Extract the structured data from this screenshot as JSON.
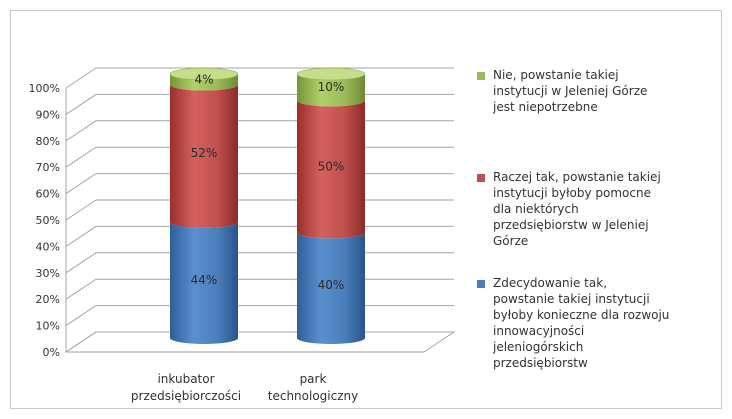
{
  "chart_data": {
    "type": "bar",
    "stacked": true,
    "three_d": true,
    "categories": [
      "inkubator przedsiębiorczości",
      "park technologiczny"
    ],
    "series": [
      {
        "name": "Zdecydowanie tak, powstanie takiej instytucji byłoby konieczne dla rozwoju innowacyjności jeleniogórskich przedsiębiorstw",
        "color": "#4a7ebb",
        "values": [
          44,
          40
        ],
        "labels": [
          "44%",
          "40%"
        ]
      },
      {
        "name": "Raczej tak, powstanie takiej instytucji byłoby pomocne dla niektórych przedsiębiorstw w Jeleniej Górze",
        "color": "#c0504d",
        "values": [
          52,
          50
        ],
        "labels": [
          "52%",
          "50%"
        ]
      },
      {
        "name": "Nie, powstanie takiej instytucji w Jeleniej Górze jest niepotrzebne",
        "color": "#9bbb59",
        "values": [
          4,
          10
        ],
        "labels": [
          "4%",
          "10%"
        ]
      }
    ],
    "ylim": [
      0,
      100
    ],
    "yticks": [
      "0%",
      "10%",
      "20%",
      "30%",
      "40%",
      "50%",
      "60%",
      "70%",
      "80%",
      "90%",
      "100%"
    ],
    "grid": true,
    "legend_position": "right"
  }
}
